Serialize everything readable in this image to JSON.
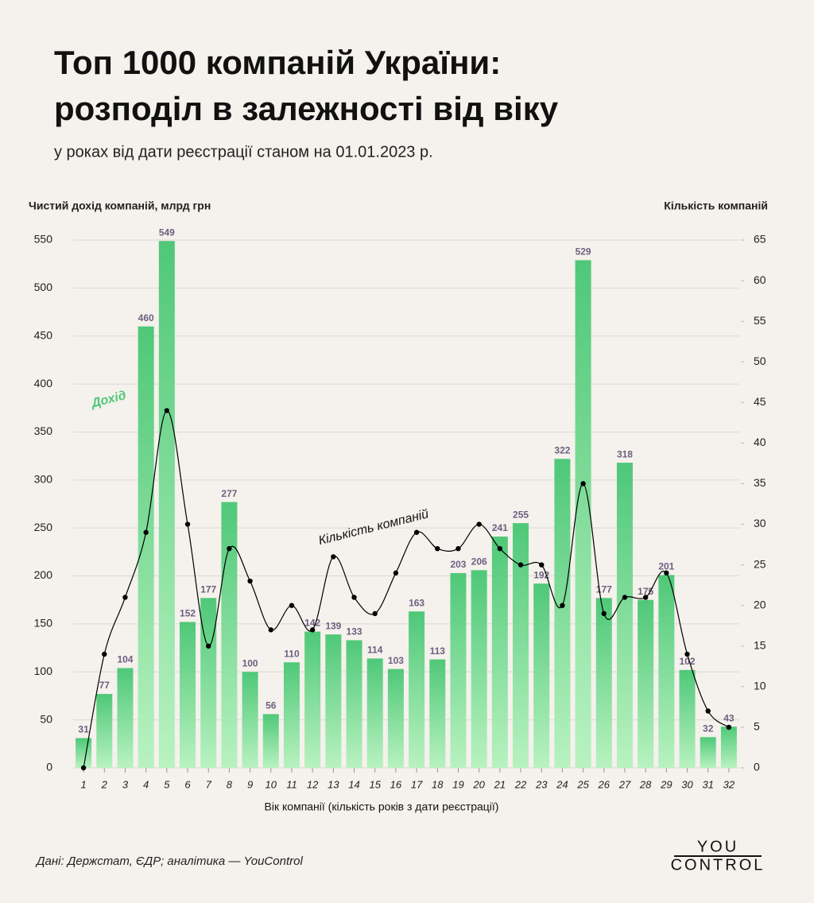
{
  "chart_data": {
    "type": "bar-line",
    "title": [
      "Топ 1000 компаній України:",
      "розподіл в залежності від віку"
    ],
    "subtitle": "у роках від дати реєстрації станом на 01.01.2023 р.",
    "ylabel": "Чистий дохід компаній, млрд грн",
    "y2label": "Кількість компаній",
    "xlabel": "Вік компанії (кількість років з дати реєстрації)",
    "source": "Дані: Держстат, ЄДР; аналітика — YouControl",
    "logo": [
      "YOU",
      "CONTROL"
    ],
    "categories": [
      "1",
      "2",
      "3",
      "4",
      "5",
      "6",
      "7",
      "8",
      "9",
      "10",
      "11",
      "12",
      "13",
      "14",
      "15",
      "16",
      "17",
      "18",
      "19",
      "20",
      "21",
      "22",
      "23",
      "24",
      "25",
      "26",
      "27",
      "28",
      "29",
      "30",
      "31",
      "32"
    ],
    "series": [
      {
        "name": "Дохід",
        "type": "bar",
        "color": "#4fc878",
        "values": [
          31,
          77,
          104,
          460,
          549,
          152,
          177,
          277,
          100,
          56,
          110,
          142,
          139,
          133,
          114,
          103,
          163,
          113,
          203,
          206,
          241,
          255,
          192,
          322,
          529,
          177,
          318,
          175,
          201,
          102,
          32,
          43
        ]
      },
      {
        "name": "Кількість компаній",
        "type": "line",
        "axis": "y2",
        "color": "#000000",
        "values": [
          0,
          14,
          21,
          29,
          44,
          30,
          15,
          27,
          23,
          17,
          20,
          17,
          26,
          21,
          19,
          24,
          29,
          27,
          27,
          30,
          27,
          25,
          25,
          20,
          35,
          19,
          21,
          21,
          24,
          14,
          7,
          5
        ]
      }
    ],
    "ylim": [
      0,
      550
    ],
    "yticks": [
      0,
      50,
      100,
      150,
      200,
      250,
      300,
      350,
      400,
      450,
      500,
      550
    ],
    "y2lim": [
      0,
      65
    ],
    "y2ticks": [
      0,
      5,
      10,
      15,
      20,
      25,
      30,
      35,
      40,
      45,
      50,
      55,
      60,
      65
    ],
    "grid": true
  }
}
